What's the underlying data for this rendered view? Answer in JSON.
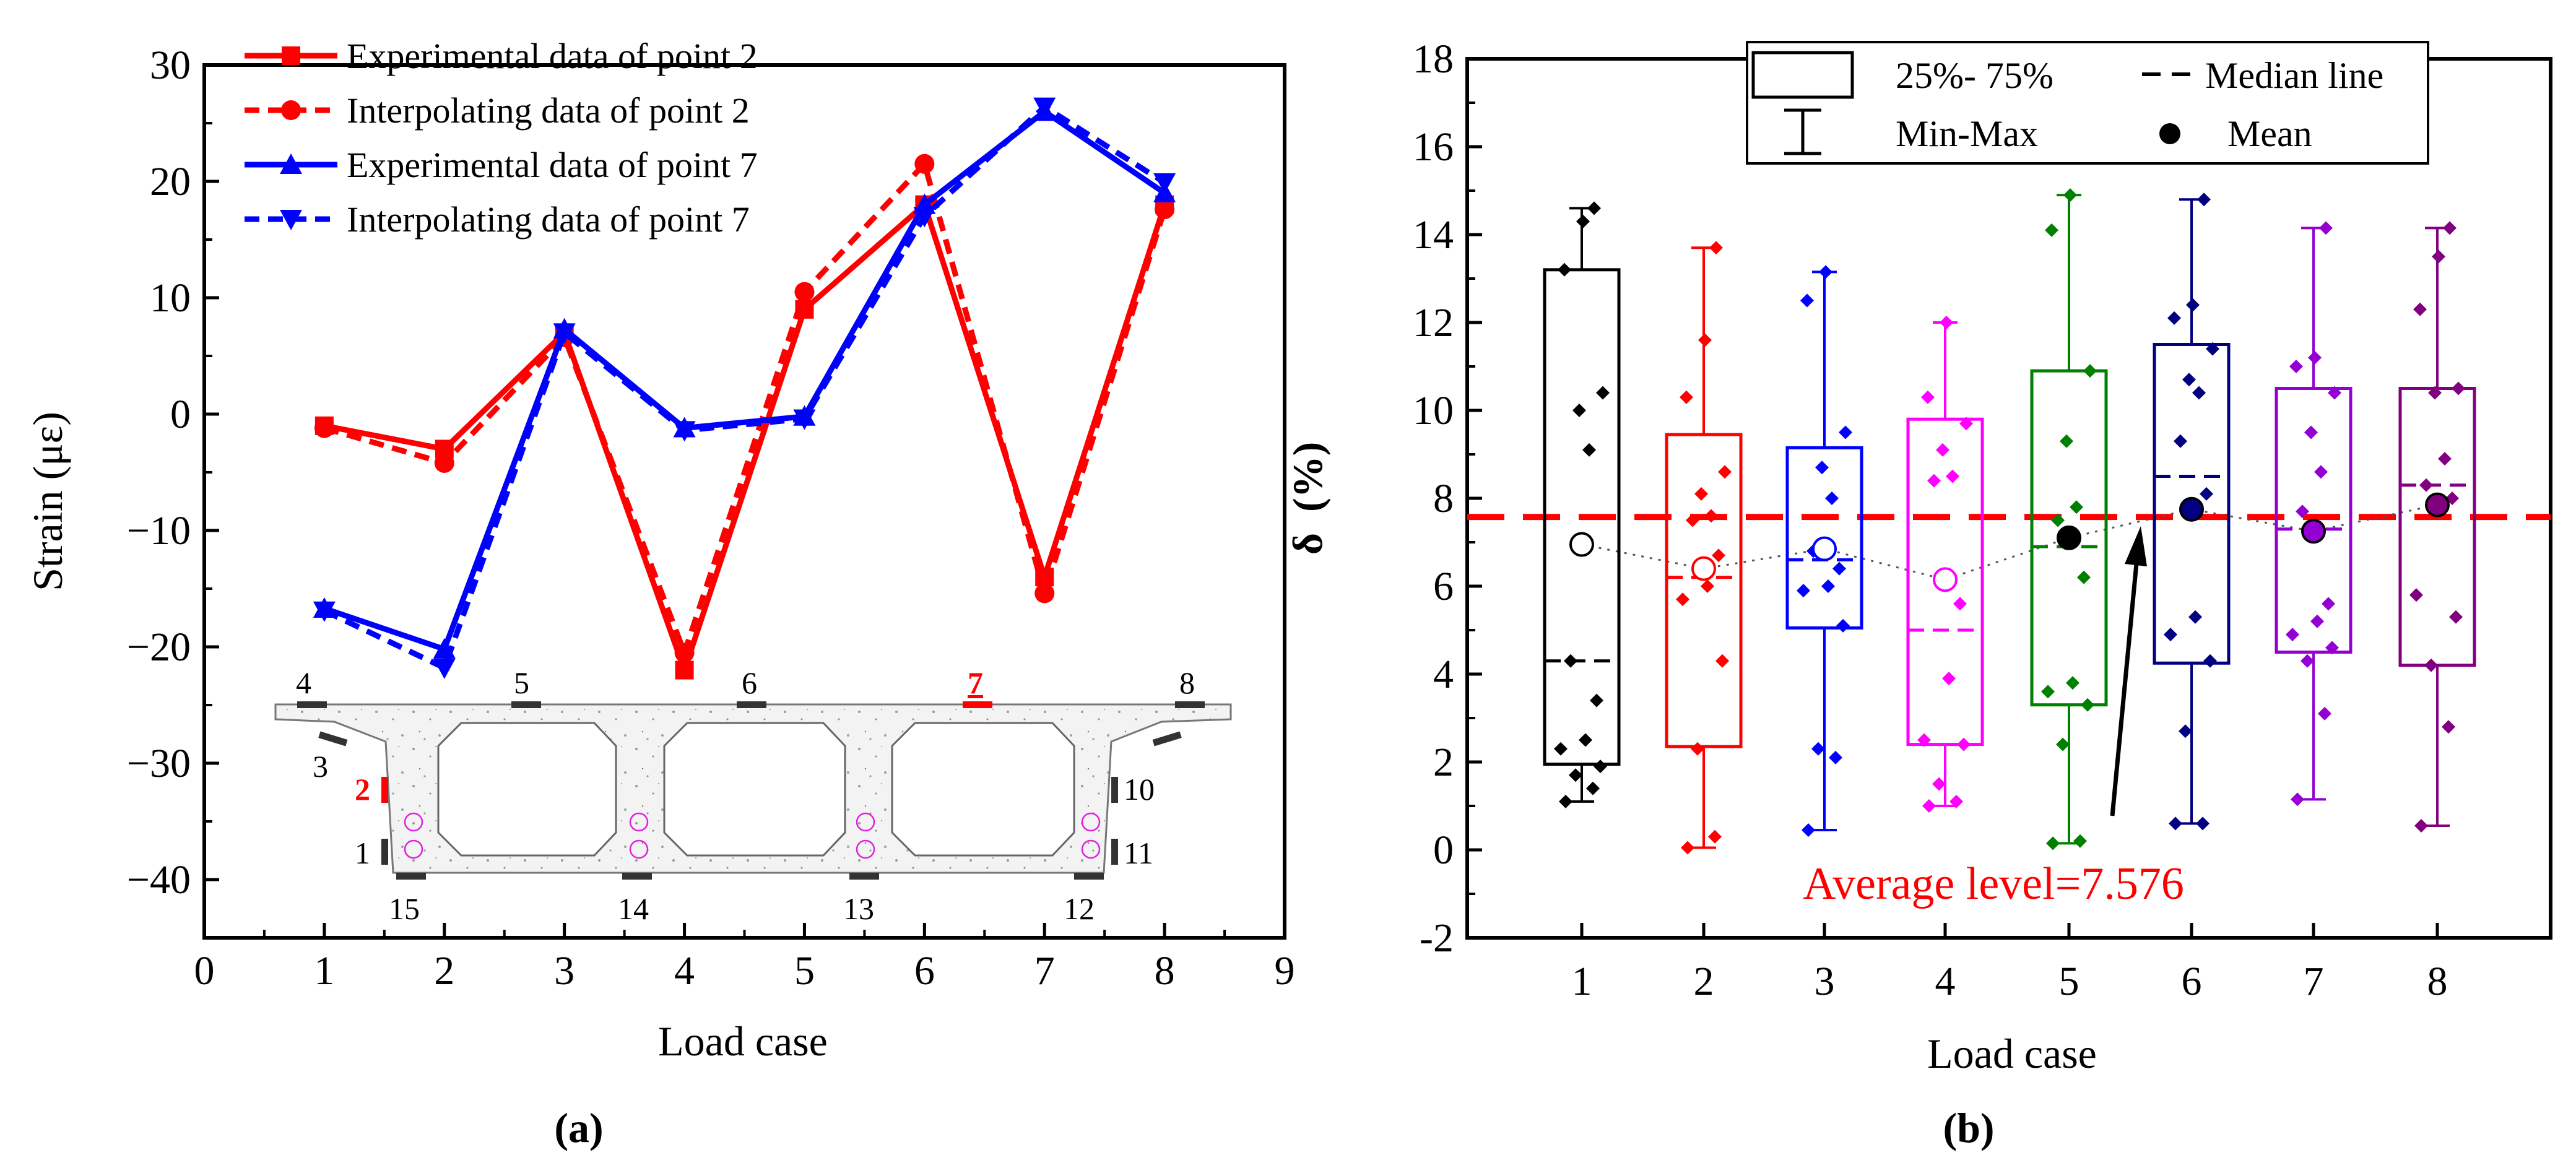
{
  "chart_data": [
    {
      "type": "line",
      "panel_label": "(a)",
      "xlabel": "Load case",
      "ylabel": "Strain (με)",
      "xlim": [
        0,
        9
      ],
      "ylim": [
        -45,
        30
      ],
      "xticks": [
        0,
        1,
        2,
        3,
        4,
        5,
        6,
        7,
        8,
        9
      ],
      "yticks": [
        30,
        20,
        10,
        0,
        -10,
        -20,
        -30,
        -40
      ],
      "x": [
        1,
        2,
        3,
        4,
        5,
        6,
        7,
        8
      ],
      "series": [
        {
          "name": "Experimental data of point 2",
          "color": "#ff0000",
          "dash": "solid",
          "marker": "square",
          "values": [
            -1,
            -3,
            7,
            -22,
            9,
            18,
            -14,
            18
          ]
        },
        {
          "name": "Interpolating data of point 2",
          "color": "#ff0000",
          "dash": "dashed",
          "marker": "circle",
          "values": [
            -1.2,
            -4.2,
            6.6,
            -20.5,
            10.5,
            21.5,
            -15.4,
            17.6
          ]
        },
        {
          "name": "Experimental data of point 7",
          "color": "#0000ff",
          "dash": "solid",
          "marker": "triangle-up",
          "values": [
            -16.7,
            -20.2,
            7.3,
            -1.2,
            -0.2,
            18,
            26,
            19
          ]
        },
        {
          "name": "Interpolating data of point 7",
          "color": "#0000ff",
          "dash": "dashed",
          "marker": "triangle-down",
          "values": [
            -16.9,
            -21.8,
            7,
            -1.4,
            -0.4,
            17,
            26.4,
            19.9
          ]
        }
      ],
      "inset": {
        "description": "bridge cross-section",
        "point_labels": [
          "4",
          "5",
          "6",
          "7",
          "8",
          "3",
          "2",
          "10",
          "1",
          "11",
          "15",
          "14",
          "13",
          "12"
        ],
        "highlighted_points": [
          "2",
          "7"
        ],
        "highlight_color": "#ff0000"
      }
    },
    {
      "type": "box",
      "panel_label": "(b)",
      "xlabel": "Load case",
      "ylabel": "δ  (%)",
      "ylim": [
        -2,
        18
      ],
      "yticks": [
        18,
        16,
        14,
        12,
        10,
        8,
        6,
        4,
        2,
        0,
        -2
      ],
      "categories": [
        "1",
        "2",
        "3",
        "4",
        "5",
        "6",
        "7",
        "8"
      ],
      "colors": [
        "#000000",
        "#ff0000",
        "#0000ff",
        "#ff00ff",
        "#008000",
        "#000080",
        "#9400d3",
        "#800080"
      ],
      "boxes": [
        {
          "min": 1.1,
          "q1": 1.95,
          "median": 4.3,
          "q3": 13.2,
          "max": 14.6,
          "mean": 6.95
        },
        {
          "min": 0.05,
          "q1": 2.35,
          "median": 6.2,
          "q3": 9.45,
          "max": 13.7,
          "mean": 6.4
        },
        {
          "min": 0.45,
          "q1": 5.05,
          "median": 6.6,
          "q3": 9.15,
          "max": 13.15,
          "mean": 6.85
        },
        {
          "min": 1.0,
          "q1": 2.4,
          "median": 5.0,
          "q3": 9.8,
          "max": 12.0,
          "mean": 6.15
        },
        {
          "min": 0.15,
          "q1": 3.3,
          "median": 6.9,
          "q3": 10.9,
          "max": 14.9,
          "mean": 7.1
        },
        {
          "min": 0.6,
          "q1": 4.25,
          "median": 8.5,
          "q3": 11.5,
          "max": 14.8,
          "mean": 7.75
        },
        {
          "min": 1.15,
          "q1": 4.5,
          "median": 7.3,
          "q3": 10.5,
          "max": 14.15,
          "mean": 7.25
        },
        {
          "min": 0.55,
          "q1": 4.2,
          "median": 8.3,
          "q3": 10.5,
          "max": 14.15,
          "mean": 7.85
        }
      ],
      "points": [
        [
          1.1,
          1.4,
          1.7,
          1.9,
          2.3,
          2.5,
          3.4,
          4.3,
          9.1,
          10.0,
          10.4,
          13.2,
          14.3,
          14.6
        ],
        [
          0.05,
          0.3,
          2.3,
          4.3,
          5.7,
          6.0,
          6.7,
          7.5,
          7.6,
          8.1,
          8.6,
          10.3,
          11.6,
          13.7
        ],
        [
          0.45,
          2.1,
          2.3,
          5.1,
          5.9,
          6.0,
          6.4,
          6.8,
          8.0,
          8.7,
          9.5,
          12.5,
          13.15
        ],
        [
          1.0,
          1.1,
          1.5,
          2.4,
          2.5,
          3.9,
          5.6,
          8.4,
          8.5,
          9.1,
          9.7,
          10.3,
          12.0
        ],
        [
          0.15,
          0.2,
          2.4,
          3.3,
          3.6,
          3.8,
          6.2,
          7.5,
          7.8,
          9.3,
          10.9,
          14.1,
          14.9
        ],
        [
          0.6,
          0.6,
          2.7,
          4.3,
          4.9,
          5.3,
          8.1,
          9.3,
          10.4,
          10.7,
          11.4,
          12.1,
          12.4,
          14.8
        ],
        [
          1.15,
          3.1,
          4.3,
          4.6,
          4.9,
          5.2,
          5.6,
          7.7,
          8.6,
          9.5,
          10.4,
          11.0,
          11.2,
          14.15
        ],
        [
          0.55,
          2.8,
          4.2,
          5.3,
          5.8,
          7.8,
          8.0,
          8.3,
          8.9,
          10.4,
          10.5,
          12.3,
          13.5,
          14.15
        ]
      ],
      "reference_line": {
        "value": 7.576,
        "color": "#ff0000",
        "label": "Average level=7.576"
      },
      "legend": {
        "box": "25%- 75%",
        "whisker": "Min-Max",
        "median": "Median line",
        "mean": "Mean"
      }
    }
  ]
}
